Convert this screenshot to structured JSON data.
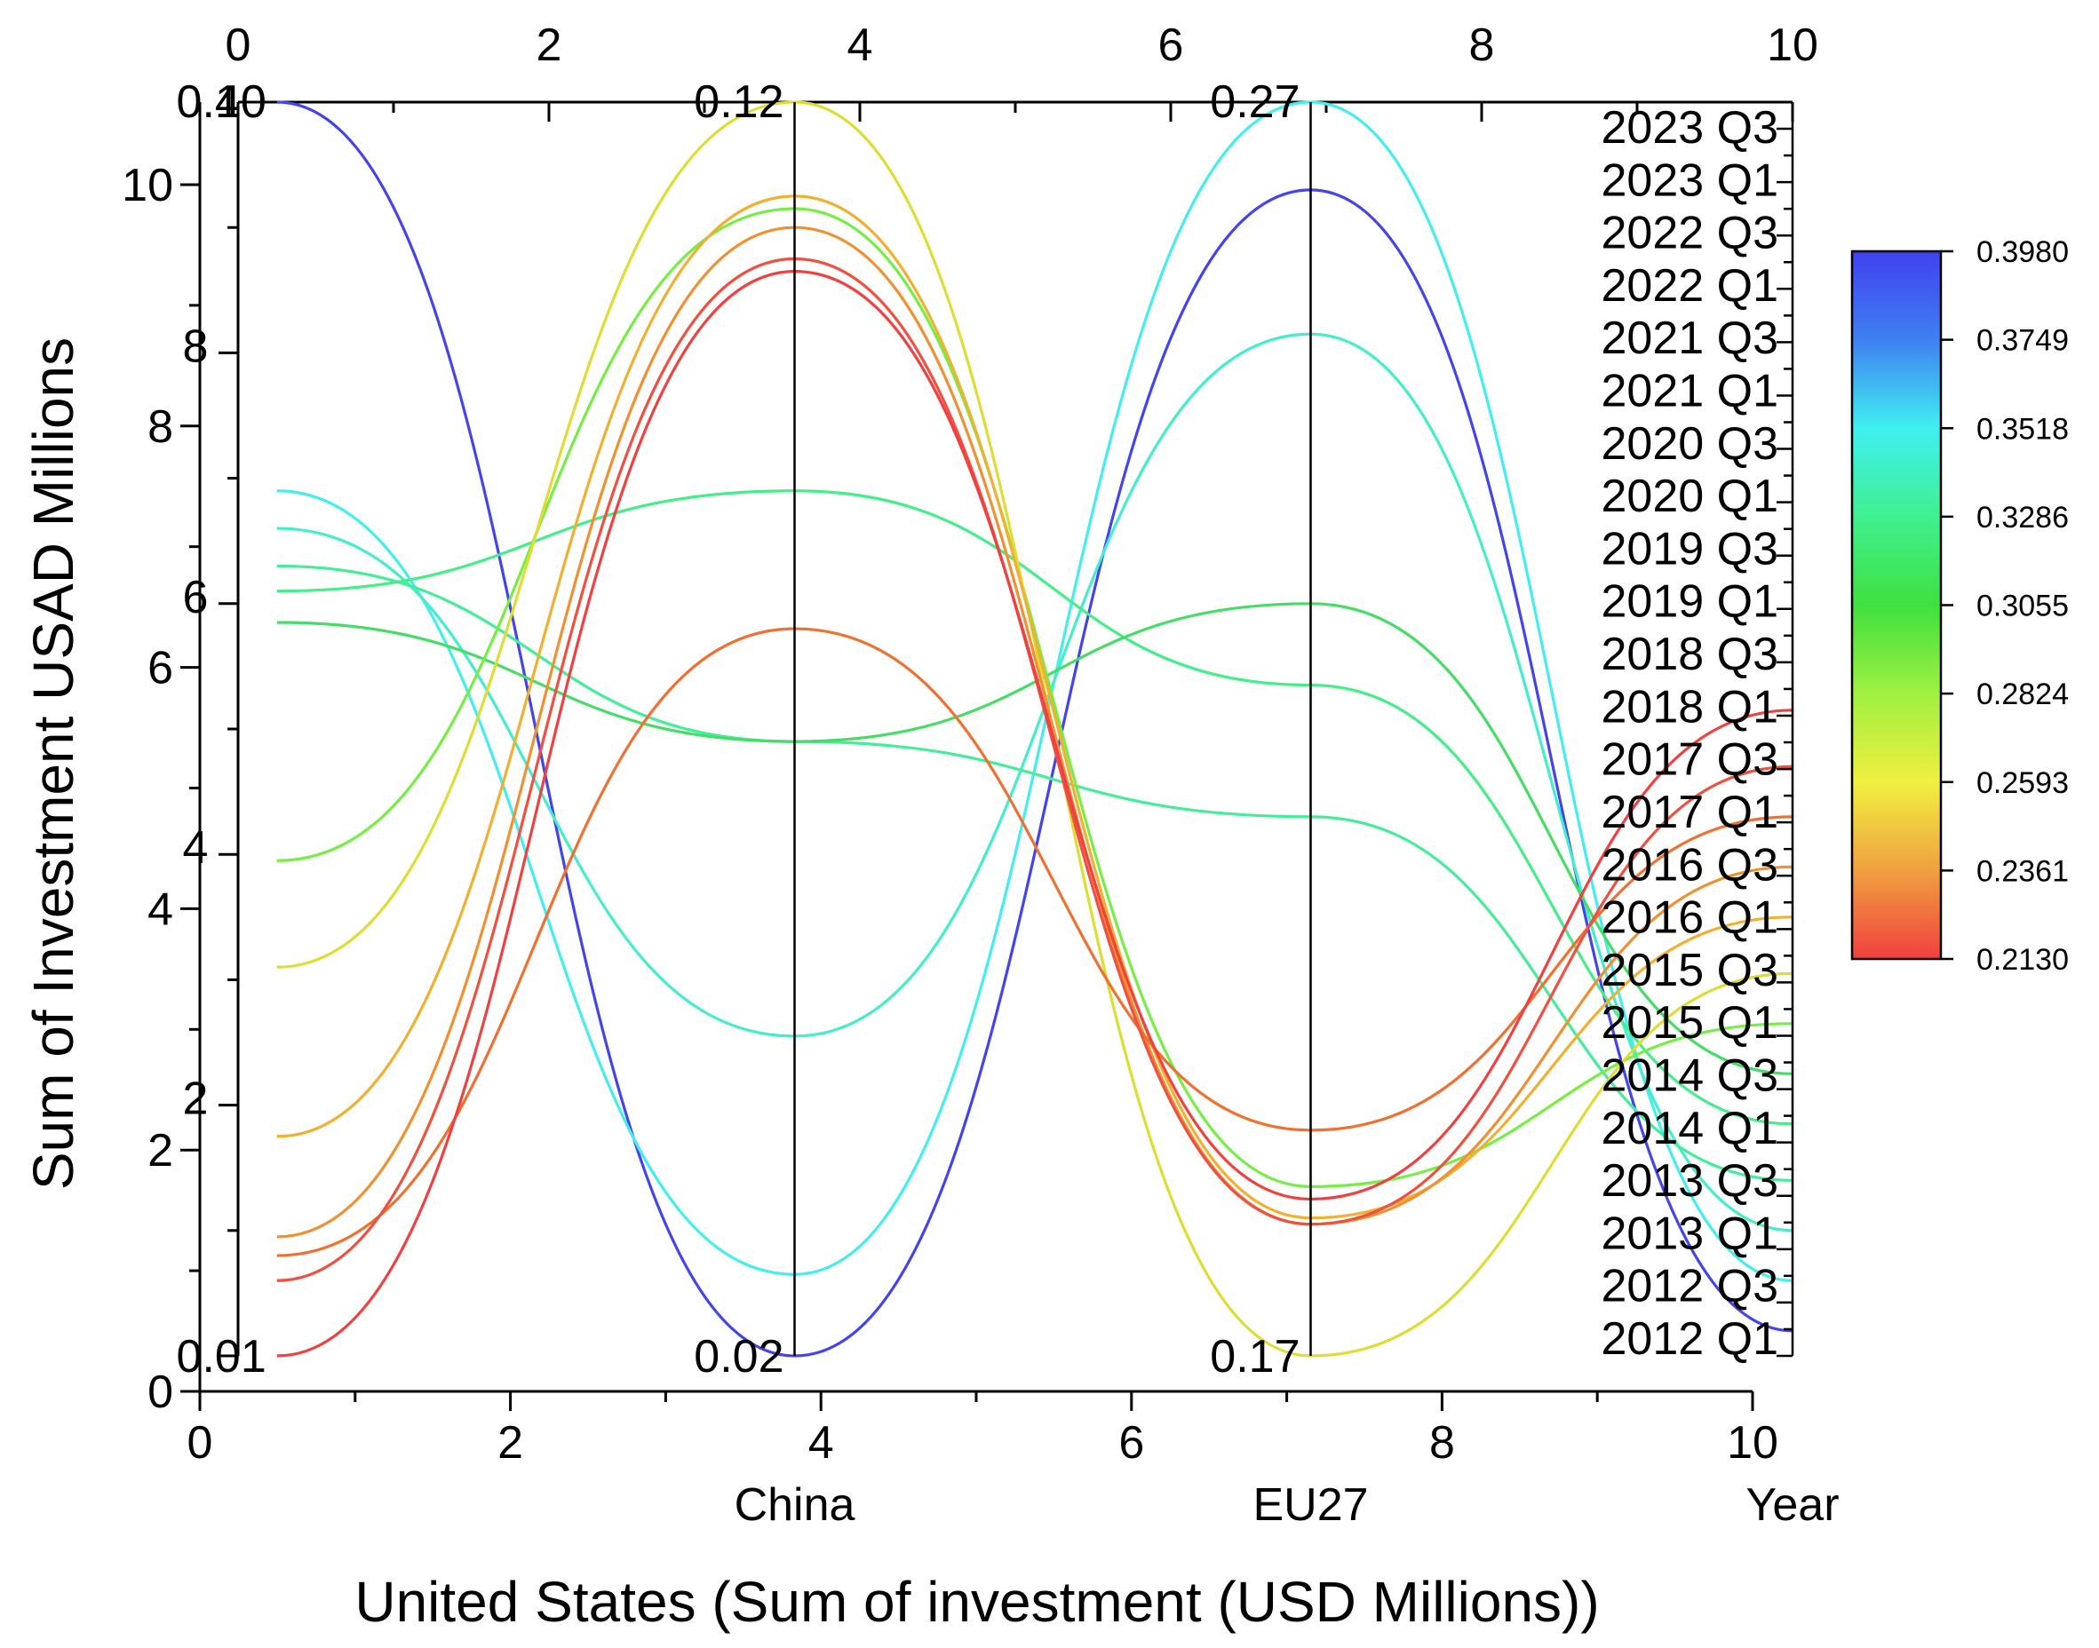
{
  "chart_data": {
    "type": "line",
    "subtype": "parallel-coordinates",
    "title": "",
    "xlabel": "United States (Sum of investment (USD Millions))",
    "ylabel": "Sum of Investment USAD Millions",
    "xlim": [
      0,
      10
    ],
    "ylim": [
      0,
      10.5
    ],
    "x_ticks": [
      "0",
      "2",
      "4",
      "6",
      "8",
      "10"
    ],
    "y_ticks": [
      "0",
      "2",
      "4",
      "6",
      "8",
      "10"
    ],
    "top_ticks": [
      "0",
      "2",
      "4",
      "6",
      "8",
      "10"
    ],
    "inner_y_ticks": [
      "2",
      "4",
      "6",
      "8"
    ],
    "axes": [
      {
        "name": "United States",
        "label": "",
        "x": 0.25,
        "min_label": "0.01",
        "max_label": "0.40",
        "overlap_label": "10"
      },
      {
        "name": "China",
        "label": "China",
        "x": 3.58,
        "min_label": "0.02",
        "max_label": "0.12"
      },
      {
        "name": "EU27",
        "label": "EU27",
        "x": 6.9,
        "min_label": "0.17",
        "max_label": "0.27"
      },
      {
        "name": "Year",
        "label": "Year",
        "x": 10.0
      }
    ],
    "year_labels": [
      "2012 Q1",
      "2012 Q3",
      "2013 Q1",
      "2013 Q3",
      "2014 Q1",
      "2014 Q3",
      "2015 Q1",
      "2015 Q3",
      "2016 Q1",
      "2016 Q3",
      "2017 Q1",
      "2017 Q3",
      "2018 Q1",
      "2018 Q3",
      "2019 Q1",
      "2019 Q3",
      "2020 Q1",
      "2020 Q3",
      "2021 Q1",
      "2021 Q3",
      "2022 Q1",
      "2022 Q3",
      "2023 Q1",
      "2023 Q3"
    ],
    "colorbar": {
      "min": 0.213,
      "max": 0.398,
      "tick_labels": [
        "0.3980",
        "0.3749",
        "0.3518",
        "0.3286",
        "0.3055",
        "0.2824",
        "0.2593",
        "0.2361",
        "0.2130"
      ],
      "colors": [
        "#4040f0",
        "#3f7ff0",
        "#40f0f0",
        "#40f080",
        "#40e040",
        "#a0f040",
        "#f0f040",
        "#f0a040",
        "#f04040"
      ]
    },
    "series": [
      {
        "name": "2012 Q1",
        "us": 10.0,
        "china": 0.0,
        "eu": 9.3,
        "year": 0.2,
        "color": "#4444ee"
      },
      {
        "name": "2012 Q3",
        "us": 6.9,
        "china": 0.65,
        "eu": 10.0,
        "year": 0.6,
        "color": "#44eeee"
      },
      {
        "name": "2013 Q1",
        "us": 6.6,
        "china": 2.55,
        "eu": 8.15,
        "year": 1.0,
        "color": "#44eecc"
      },
      {
        "name": "2013 Q3",
        "us": 6.3,
        "china": 4.9,
        "eu": 4.3,
        "year": 1.4,
        "color": "#44ee99"
      },
      {
        "name": "2014 Q1",
        "us": 6.1,
        "china": 6.9,
        "eu": 5.35,
        "year": 1.85,
        "color": "#44ee88"
      },
      {
        "name": "2014 Q3",
        "us": 5.85,
        "china": 4.9,
        "eu": 6.0,
        "year": 2.25,
        "color": "#44dd66"
      },
      {
        "name": "2015 Q1",
        "us": 3.95,
        "china": 9.15,
        "eu": 1.35,
        "year": 2.65,
        "color": "#77ee44"
      },
      {
        "name": "2015 Q3",
        "us": 3.1,
        "china": 10.0,
        "eu": 0.0,
        "year": 3.05,
        "color": "#dddd33"
      },
      {
        "name": "2016 Q1",
        "us": 1.75,
        "china": 9.25,
        "eu": 1.1,
        "year": 3.5,
        "color": "#f0b030"
      },
      {
        "name": "2016 Q3",
        "us": 0.95,
        "china": 9.0,
        "eu": 1.05,
        "year": 3.9,
        "color": "#f09030"
      },
      {
        "name": "2017 Q1",
        "us": 0.8,
        "china": 5.8,
        "eu": 1.8,
        "year": 4.3,
        "color": "#f07030"
      },
      {
        "name": "2017 Q3",
        "us": 0.6,
        "china": 8.75,
        "eu": 1.05,
        "year": 4.7,
        "color": "#f05040"
      },
      {
        "name": "2018 Q1",
        "us": 0.0,
        "china": 8.65,
        "eu": 1.25,
        "year": 5.15,
        "color": "#f04040"
      }
    ]
  }
}
